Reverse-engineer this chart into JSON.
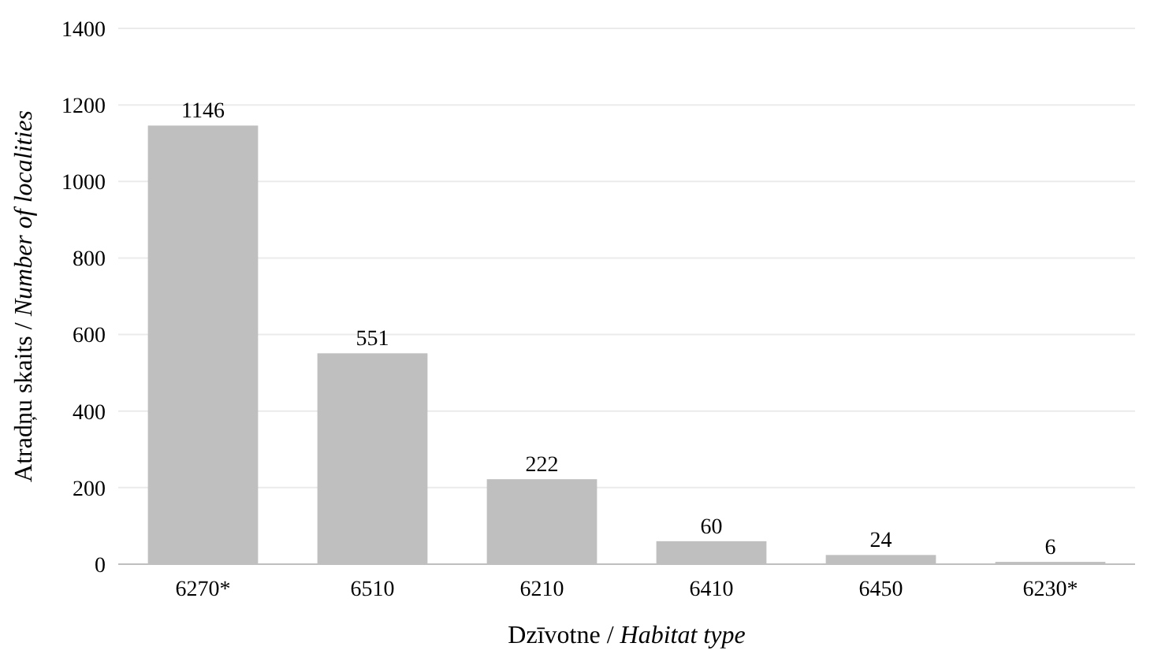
{
  "chart_data": {
    "type": "bar",
    "xlabel": "Dzīvotne / Habitat type",
    "ylabel": "Atradņu skaits / Number of localities",
    "categories": [
      "6270*",
      "6510",
      "6210",
      "6410",
      "6450",
      "6230*"
    ],
    "values": [
      1146,
      551,
      222,
      60,
      24,
      6
    ],
    "color": "#bfbfbf",
    "ylim": [
      0,
      1400
    ],
    "yticks": [
      0,
      200,
      400,
      600,
      800,
      1000,
      1200,
      1400
    ],
    "grid": "y",
    "data_labels": true
  }
}
